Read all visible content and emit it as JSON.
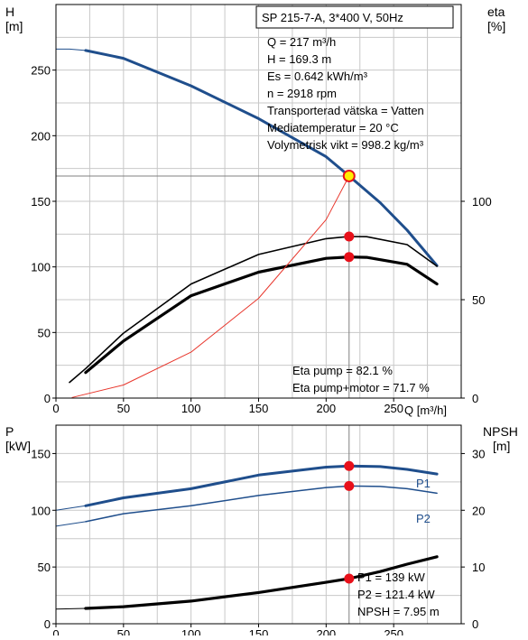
{
  "chart_data": [
    {
      "type": "line",
      "title": "SP 215-7-A, 3*400 V, 50Hz",
      "left_axis": {
        "label_line1": "H",
        "label_line2": "[m]",
        "ylim": [
          0,
          300
        ],
        "ticks": [
          0,
          50,
          100,
          150,
          200,
          250
        ]
      },
      "right_axis": {
        "label_line1": "eta",
        "label_line2": "[%]",
        "ylim": [
          0,
          200
        ],
        "ticks": [
          0,
          50,
          100
        ]
      },
      "x_axis": {
        "label": "Q [m³/h]",
        "xlim": [
          0,
          300
        ],
        "ticks": [
          0,
          50,
          100,
          150,
          200,
          250
        ]
      },
      "grid": true,
      "series": [
        {
          "key": "H",
          "axis": "left",
          "color": "#1f4e8c",
          "width": 3,
          "x": [
            22,
            50,
            100,
            150,
            200,
            217,
            240,
            260,
            282
          ],
          "y": [
            265,
            259,
            238,
            213,
            184,
            169.3,
            149,
            128,
            101
          ]
        },
        {
          "key": "H_ext",
          "axis": "left",
          "color": "#1f4e8c",
          "width": 1,
          "x": [
            0,
            10,
            22
          ],
          "y": [
            266,
            266,
            265
          ]
        },
        {
          "key": "eta_pump",
          "axis": "right",
          "color": "#000000",
          "width": 1.6,
          "x": [
            10,
            22,
            50,
            100,
            150,
            200,
            217,
            230,
            260,
            282
          ],
          "y": [
            8,
            15,
            33,
            58,
            73,
            81,
            82.1,
            82,
            78,
            67
          ]
        },
        {
          "key": "eta_total",
          "axis": "right",
          "color": "#000000",
          "width": 3.2,
          "x": [
            22,
            50,
            100,
            150,
            200,
            217,
            230,
            260,
            282
          ],
          "y": [
            13,
            29,
            52,
            64,
            71,
            71.7,
            71.5,
            68,
            58
          ]
        },
        {
          "key": "curve_red",
          "axis": "left",
          "color": "#e8362c",
          "width": 1,
          "x": [
            12,
            50,
            100,
            150,
            200,
            217
          ],
          "y": [
            0.5,
            10,
            35,
            76,
            136,
            169.3
          ]
        }
      ],
      "operating_point": {
        "x": 217,
        "H": 169.3,
        "eta_pump": 82.1,
        "eta_total": 71.7
      },
      "info": [
        "Q = 217 m³/h",
        "H = 169.3 m",
        "Es = 0.642 kWh/m³",
        "n = 2918 rpm",
        "Transporterad vätska = Vatten",
        "Mediatemperatur = 20 °C",
        "Volymetrisk vikt = 998.2 kg/m³"
      ],
      "eta_labels": [
        "Eta pump = 82.1 %",
        "Eta pump+motor = 71.7 %"
      ]
    },
    {
      "type": "line",
      "left_axis": {
        "label_line1": "P",
        "label_line2": "[kW]",
        "ylim": [
          0,
          175
        ],
        "ticks": [
          0,
          50,
          100,
          150
        ]
      },
      "right_axis": {
        "label_line1": "NPSH",
        "label_line2": "[m]",
        "ylim": [
          0,
          35
        ],
        "ticks": [
          0,
          10,
          20,
          30
        ]
      },
      "x_axis": {
        "xlim": [
          0,
          300
        ],
        "ticks": [
          0,
          50,
          100,
          150,
          200,
          250
        ]
      },
      "grid": true,
      "series": [
        {
          "key": "P1",
          "name": "P1",
          "axis": "left",
          "color": "#1f4e8c",
          "width": 3,
          "x": [
            22,
            50,
            100,
            150,
            200,
            217,
            240,
            260,
            282
          ],
          "y": [
            104,
            111,
            119,
            131,
            138,
            139,
            138.5,
            136,
            132
          ]
        },
        {
          "key": "P1_ext",
          "axis": "left",
          "color": "#1f4e8c",
          "width": 1,
          "x": [
            0,
            22
          ],
          "y": [
            100,
            104
          ]
        },
        {
          "key": "P2",
          "name": "P2",
          "axis": "left",
          "color": "#1f4e8c",
          "width": 1.5,
          "x": [
            22,
            50,
            100,
            150,
            200,
            217,
            240,
            260,
            282
          ],
          "y": [
            90,
            97,
            104,
            113,
            120,
            121.4,
            121,
            119,
            115
          ]
        },
        {
          "key": "P2_ext",
          "axis": "left",
          "color": "#1f4e8c",
          "width": 1,
          "x": [
            0,
            22
          ],
          "y": [
            86,
            90
          ]
        },
        {
          "key": "NPSH",
          "axis": "right",
          "color": "#000000",
          "width": 3.2,
          "x": [
            22,
            50,
            100,
            150,
            200,
            217,
            240,
            260,
            282
          ],
          "y": [
            2.7,
            3,
            4,
            5.5,
            7.3,
            7.95,
            9.2,
            10.5,
            11.8
          ]
        },
        {
          "key": "NPSH_ext",
          "axis": "right",
          "color": "#000000",
          "width": 1,
          "x": [
            0,
            22
          ],
          "y": [
            2.6,
            2.7
          ]
        }
      ],
      "operating_point": {
        "x": 217,
        "P1": 139,
        "P2": 121.4,
        "NPSH": 7.95
      },
      "info": [
        "P1 = 139 kW",
        "P2 = 121.4 kW",
        "NPSH = 7.95 m"
      ]
    }
  ]
}
